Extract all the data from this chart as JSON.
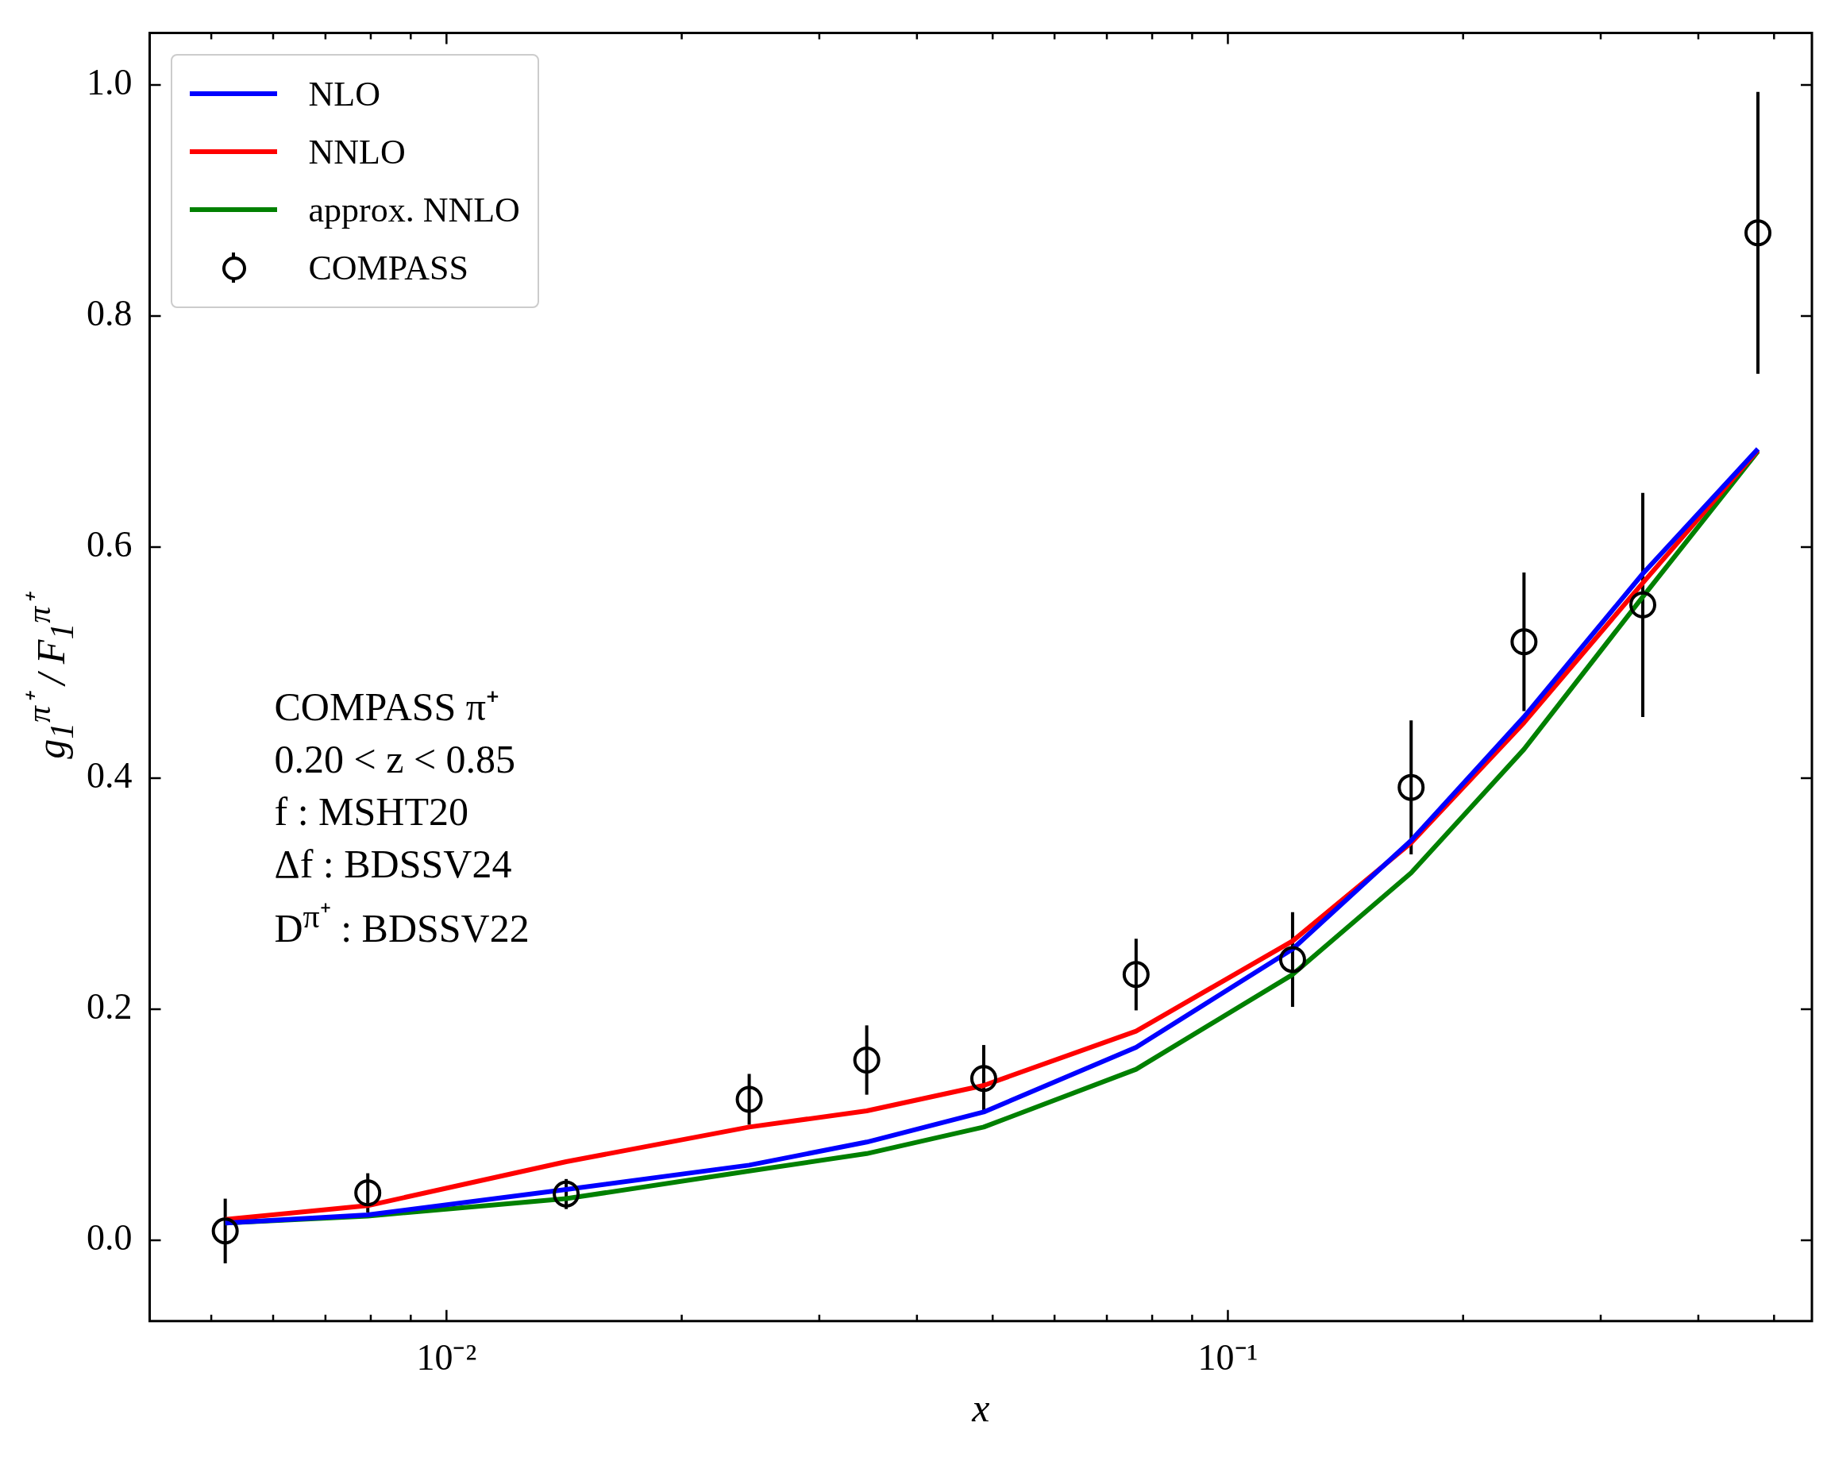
{
  "chart_data": {
    "type": "line",
    "xlabel": "x",
    "ylabel": "g$_{1}$$^{π⁺}$ / F$_{1}$$^{π⁺}$",
    "x": [
      0.00521,
      0.00793,
      0.01423,
      0.0244,
      0.0345,
      0.0487,
      0.0763,
      0.121,
      0.1716,
      0.2393,
      0.3396,
      0.4768
    ],
    "series": [
      {
        "name": "NLO",
        "color": "#0000ff",
        "values": [
          0.015,
          0.022,
          0.044,
          0.065,
          0.085,
          0.111,
          0.167,
          0.252,
          0.346,
          0.453,
          0.577,
          0.685
        ]
      },
      {
        "name": "NNLO",
        "color": "#ff0000",
        "values": [
          0.018,
          0.03,
          0.068,
          0.098,
          0.112,
          0.134,
          0.181,
          0.259,
          0.344,
          0.448,
          0.569,
          0.684
        ]
      },
      {
        "name": "approx. NNLO",
        "color": "#008000",
        "values": [
          0.015,
          0.021,
          0.036,
          0.06,
          0.075,
          0.098,
          0.148,
          0.23,
          0.318,
          0.425,
          0.557,
          0.683
        ]
      },
      {
        "name": "COMPASS",
        "type": "scatter",
        "marker": "circle",
        "color": "#000000",
        "values": [
          0.008,
          0.041,
          0.04,
          0.122,
          0.156,
          0.14,
          0.23,
          0.243,
          0.392,
          0.518,
          0.55,
          0.872
        ],
        "errors": [
          0.028,
          0.017,
          0.013,
          0.022,
          0.03,
          0.029,
          0.031,
          0.041,
          0.058,
          0.06,
          0.097,
          0.122
        ]
      }
    ],
    "log": "x",
    "xlim": [
      0.00417,
      0.559
    ],
    "ylim": [
      -0.07,
      1.045
    ],
    "xticks": [
      {
        "value": 0.005,
        "label": null
      },
      {
        "value": 0.006,
        "label": null
      },
      {
        "value": 0.007,
        "label": null
      },
      {
        "value": 0.008,
        "label": null
      },
      {
        "value": 0.009,
        "label": null
      },
      {
        "value": 0.01,
        "label": "10⁻²"
      },
      {
        "value": 0.02,
        "label": null
      },
      {
        "value": 0.03,
        "label": null
      },
      {
        "value": 0.04,
        "label": null
      },
      {
        "value": 0.05,
        "label": null
      },
      {
        "value": 0.06,
        "label": null
      },
      {
        "value": 0.07,
        "label": null
      },
      {
        "value": 0.08,
        "label": null
      },
      {
        "value": 0.09,
        "label": null
      },
      {
        "value": 0.1,
        "label": "10⁻¹"
      },
      {
        "value": 0.2,
        "label": null
      },
      {
        "value": 0.3,
        "label": null
      },
      {
        "value": 0.4,
        "label": null
      },
      {
        "value": 0.5,
        "label": null
      }
    ],
    "yticks": [
      {
        "value": 0,
        "label": "0.0"
      },
      {
        "value": 0.2,
        "label": "0.2"
      },
      {
        "value": 0.4,
        "label": "0.4"
      },
      {
        "value": 0.6,
        "label": "0.6"
      },
      {
        "value": 0.8,
        "label": "0.8"
      },
      {
        "value": 1,
        "label": "1.0"
      }
    ],
    "legend": "top left",
    "grid": false,
    "annotations": [
      "COMPASS π⁺",
      "0.20 < z < 0.85",
      "f : MSHT20",
      "Δf : BDSSV24",
      "D$^{π⁺}$ : BDSSV22"
    ]
  }
}
